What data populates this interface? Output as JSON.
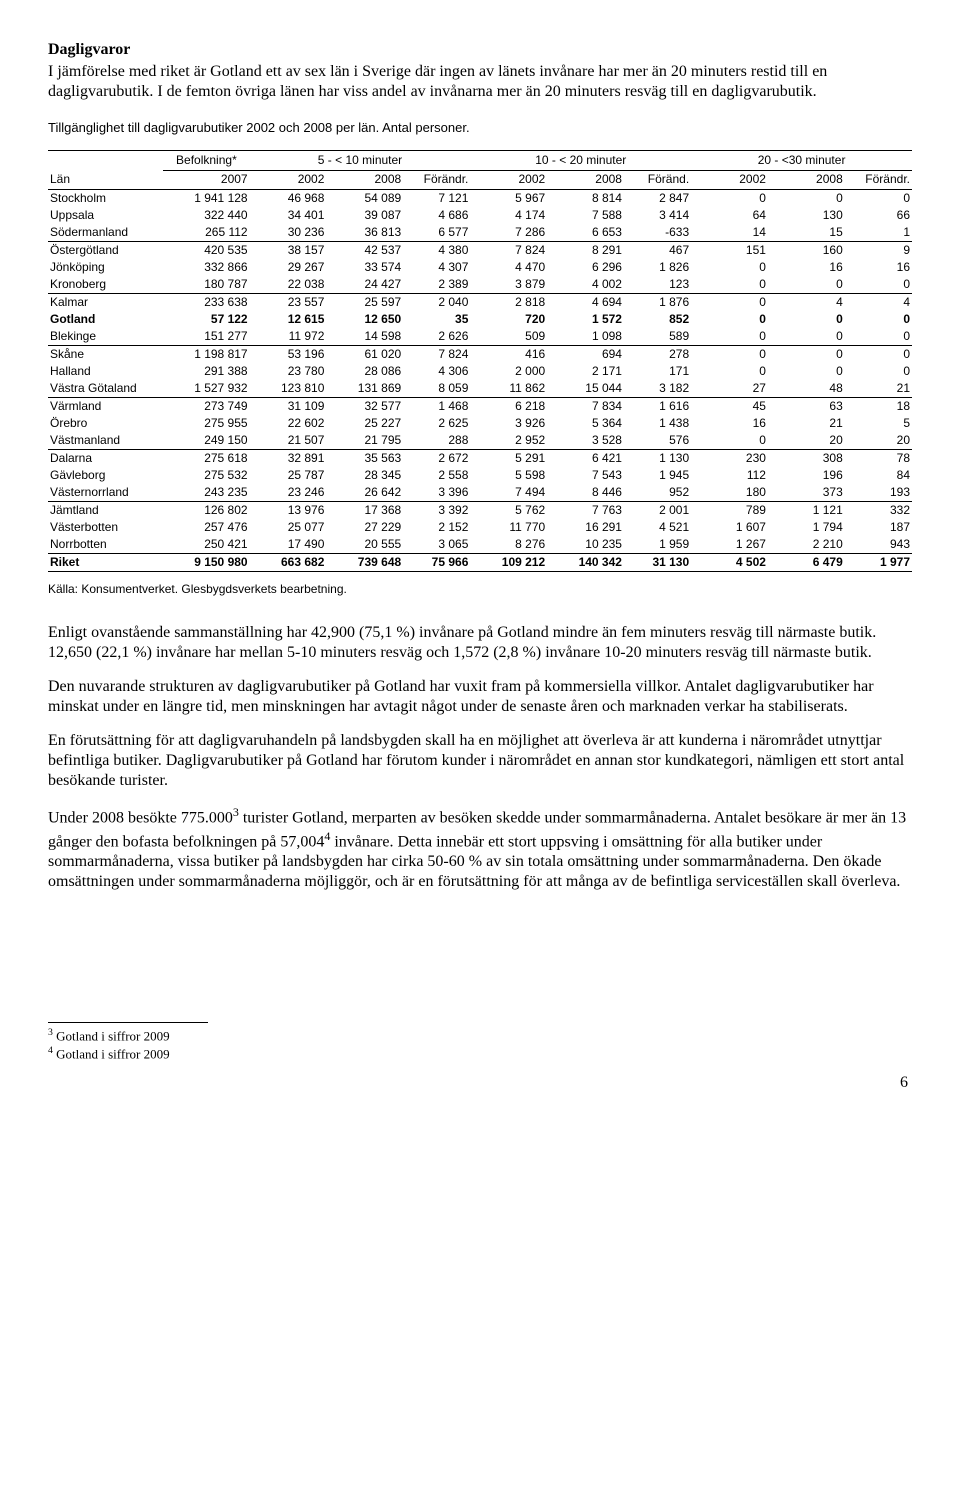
{
  "section_title": "Dagligvaror",
  "intro": "I jämförelse med riket är Gotland ett av sex län i Sverige där ingen av länets invånare har mer än 20 minuters restid till en dagligvarubutik. I de femton övriga länen har viss andel av invånarna mer än 20 minuters resväg till en dagligvarubutik.",
  "table_caption": "Tillgänglighet till dagligvarubutiker 2002 och 2008 per län. Antal personer.",
  "table": {
    "group_headers": [
      "Befolkning*",
      "5 - < 10 minuter",
      "10 -  < 20 minuter",
      "20 - <30 minuter"
    ],
    "col_headers": [
      "Län",
      "2007",
      "2002",
      "2008",
      "Förändr.",
      "2002",
      "2008",
      "Föränd.",
      "2002",
      "2008",
      "Förändr."
    ],
    "rows": [
      {
        "lbl": "Stockholm",
        "v": [
          "1 941 128",
          "46 968",
          "54 089",
          "7 121",
          "5 967",
          "8 814",
          "2 847",
          "0",
          "0",
          "0"
        ]
      },
      {
        "lbl": "Uppsala",
        "v": [
          "322 440",
          "34 401",
          "39 087",
          "4 686",
          "4 174",
          "7 588",
          "3 414",
          "64",
          "130",
          "66"
        ]
      },
      {
        "lbl": "Södermanland",
        "v": [
          "265 112",
          "30 236",
          "36 813",
          "6 577",
          "7 286",
          "6 653",
          "-633",
          "14",
          "15",
          "1"
        ],
        "sep": true
      },
      {
        "lbl": "Östergötland",
        "v": [
          "420 535",
          "38 157",
          "42 537",
          "4 380",
          "7 824",
          "8 291",
          "467",
          "151",
          "160",
          "9"
        ]
      },
      {
        "lbl": "Jönköping",
        "v": [
          "332 866",
          "29 267",
          "33 574",
          "4 307",
          "4 470",
          "6 296",
          "1 826",
          "0",
          "16",
          "16"
        ]
      },
      {
        "lbl": "Kronoberg",
        "v": [
          "180 787",
          "22 038",
          "24 427",
          "2 389",
          "3 879",
          "4 002",
          "123",
          "0",
          "0",
          "0"
        ],
        "sep": true
      },
      {
        "lbl": "Kalmar",
        "v": [
          "233 638",
          "23 557",
          "25 597",
          "2 040",
          "2 818",
          "4 694",
          "1 876",
          "0",
          "4",
          "4"
        ]
      },
      {
        "lbl": "Gotland",
        "v": [
          "57 122",
          "12 615",
          "12 650",
          "35",
          "720",
          "1 572",
          "852",
          "0",
          "0",
          "0"
        ],
        "bold": true
      },
      {
        "lbl": "Blekinge",
        "v": [
          "151 277",
          "11 972",
          "14 598",
          "2 626",
          "509",
          "1 098",
          "589",
          "0",
          "0",
          "0"
        ],
        "sep": true
      },
      {
        "lbl": "Skåne",
        "v": [
          "1 198 817",
          "53 196",
          "61 020",
          "7 824",
          "416",
          "694",
          "278",
          "0",
          "0",
          "0"
        ]
      },
      {
        "lbl": "Halland",
        "v": [
          "291 388",
          "23 780",
          "28 086",
          "4 306",
          "2 000",
          "2 171",
          "171",
          "0",
          "0",
          "0"
        ]
      },
      {
        "lbl": "Västra Götaland",
        "v": [
          "1 527 932",
          "123 810",
          "131 869",
          "8 059",
          "11 862",
          "15 044",
          "3 182",
          "27",
          "48",
          "21"
        ],
        "sep": true
      },
      {
        "lbl": "Värmland",
        "v": [
          "273 749",
          "31 109",
          "32 577",
          "1 468",
          "6 218",
          "7 834",
          "1 616",
          "45",
          "63",
          "18"
        ]
      },
      {
        "lbl": "Örebro",
        "v": [
          "275 955",
          "22 602",
          "25 227",
          "2 625",
          "3 926",
          "5 364",
          "1 438",
          "16",
          "21",
          "5"
        ]
      },
      {
        "lbl": "Västmanland",
        "v": [
          "249 150",
          "21 507",
          "21 795",
          "288",
          "2 952",
          "3 528",
          "576",
          "0",
          "20",
          "20"
        ],
        "sep": true
      },
      {
        "lbl": "Dalarna",
        "v": [
          "275 618",
          "32 891",
          "35 563",
          "2 672",
          "5 291",
          "6 421",
          "1 130",
          "230",
          "308",
          "78"
        ]
      },
      {
        "lbl": "Gävleborg",
        "v": [
          "275 532",
          "25 787",
          "28 345",
          "2 558",
          "5 598",
          "7 543",
          "1 945",
          "112",
          "196",
          "84"
        ]
      },
      {
        "lbl": "Västernorrland",
        "v": [
          "243 235",
          "23 246",
          "26 642",
          "3 396",
          "7 494",
          "8 446",
          "952",
          "180",
          "373",
          "193"
        ],
        "sep": true
      },
      {
        "lbl": "Jämtland",
        "v": [
          "126 802",
          "13 976",
          "17 368",
          "3 392",
          "5 762",
          "7 763",
          "2 001",
          "789",
          "1 121",
          "332"
        ]
      },
      {
        "lbl": "Västerbotten",
        "v": [
          "257 476",
          "25 077",
          "27 229",
          "2 152",
          "11 770",
          "16 291",
          "4 521",
          "1 607",
          "1 794",
          "187"
        ]
      },
      {
        "lbl": "Norrbotten",
        "v": [
          "250 421",
          "17 490",
          "20 555",
          "3 065",
          "8 276",
          "10 235",
          "1 959",
          "1 267",
          "2 210",
          "943"
        ],
        "sep": true
      },
      {
        "lbl": "Riket",
        "v": [
          "9 150 980",
          "663 682",
          "739 648",
          "75 966",
          "109 212",
          "140 342",
          "31 130",
          "4 502",
          "6 479",
          "1 977"
        ],
        "bold": true,
        "sep": true
      }
    ]
  },
  "source_note": "Källa: Konsumentverket. Glesbygdsverkets bearbetning.",
  "para1": "Enligt ovanstående sammanställning har 42,900 (75,1 %) invånare på Gotland mindre än fem minuters resväg till närmaste butik. 12,650 (22,1 %) invånare har mellan 5-10 minuters resväg och 1,572 (2,8 %) invånare 10-20 minuters resväg till närmaste butik.",
  "para2": "Den nuvarande strukturen av dagligvarubutiker på Gotland har vuxit fram på kommersiella villkor. Antalet dagligvarubutiker har minskat under en längre tid, men minskningen har avtagit något under de senaste åren och marknaden verkar ha stabiliserats.",
  "para3": "En förutsättning för att dagligvaruhandeln på landsbygden skall ha en möjlighet att överleva är att kunderna i närområdet utnyttjar befintliga butiker. Dagligvarubutiker på Gotland har förutom kunder i närområdet en annan stor kundkategori, nämligen ett stort antal besökande turister.",
  "para4_a": "Under 2008  besökte 775.000",
  "para4_sup": "3",
  "para4_b": " turister Gotland, merparten av besöken skedde under sommarmånaderna. Antalet besökare är mer än 13 gånger den bofasta befolkningen på 57,004",
  "para4_sup2": "4",
  "para4_c": " invånare. Detta innebär ett stort uppsving i omsättning för alla butiker under sommarmånaderna, vissa butiker på landsbygden har cirka 50-60 % av sin totala omsättning under sommarmånaderna. Den ökade omsättningen under sommarmånaderna möjliggör, och är en förutsättning för att många av de befintliga serviceställen skall överleva.",
  "footnotes": [
    {
      "num": "3",
      "text": " Gotland i siffror 2009"
    },
    {
      "num": "4",
      "text": " Gotland i siffror 2009"
    }
  ],
  "page_number": "6"
}
